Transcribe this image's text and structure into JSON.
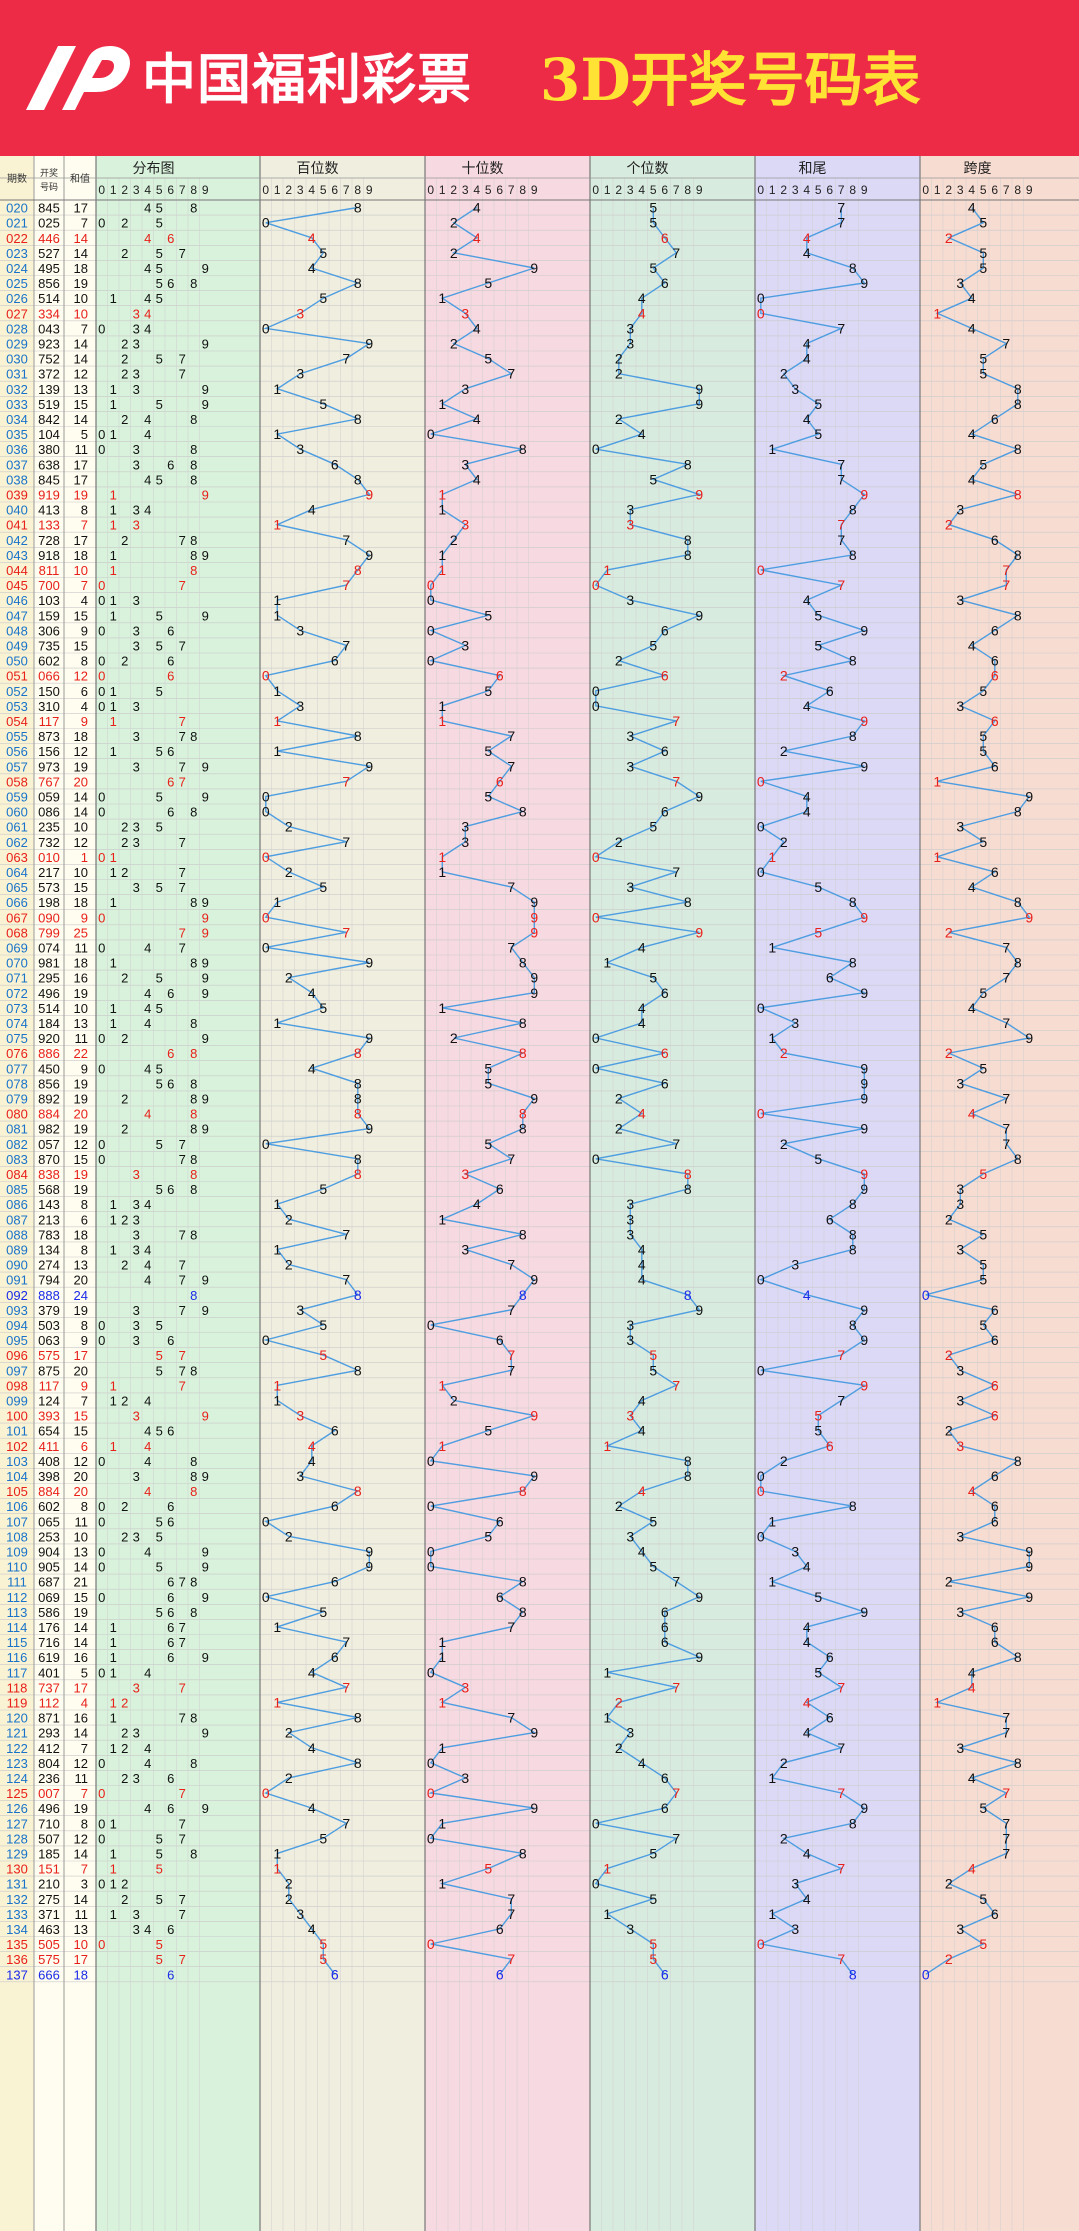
{
  "header": {
    "brand": "中国福利彩票",
    "title": "3D开奖号码表"
  },
  "colors": {
    "banner": "#ee2b47",
    "title_text": "#ffe234",
    "fenbu_bg": "#d9f2dc",
    "bai_bg": "#f0eedf",
    "shi_bg": "#f7d9e1",
    "ge_bg": "#d8ebdf",
    "hewei_bg": "#dcd9f7",
    "kuadu_bg": "#f7dcd2",
    "line": "#4d9de0",
    "pair": "#e8201a",
    "triple": "#1a2ae8"
  },
  "table": {
    "col_headers": [
      "期数",
      "开奖号码",
      "和值"
    ],
    "section_headers": [
      "分布图",
      "百位数",
      "十位数",
      "个位数",
      "和尾",
      "跨度"
    ],
    "digit_headers": [
      "0",
      "1",
      "2",
      "3",
      "4",
      "5",
      "6",
      "7",
      "8",
      "9"
    ]
  },
  "chart_data": {
    "type": "table",
    "columns": [
      "period",
      "number",
      "sum"
    ],
    "rows": [
      [
        "020",
        "845",
        "17"
      ],
      [
        "021",
        "025",
        "7"
      ],
      [
        "022",
        "446",
        "14"
      ],
      [
        "023",
        "527",
        "14"
      ],
      [
        "024",
        "495",
        "18"
      ],
      [
        "025",
        "856",
        "19"
      ],
      [
        "026",
        "514",
        "10"
      ],
      [
        "027",
        "334",
        "10"
      ],
      [
        "028",
        "043",
        "7"
      ],
      [
        "029",
        "923",
        "14"
      ],
      [
        "030",
        "752",
        "14"
      ],
      [
        "031",
        "372",
        "12"
      ],
      [
        "032",
        "139",
        "13"
      ],
      [
        "033",
        "519",
        "15"
      ],
      [
        "034",
        "842",
        "14"
      ],
      [
        "035",
        "104",
        "5"
      ],
      [
        "036",
        "380",
        "11"
      ],
      [
        "037",
        "638",
        "17"
      ],
      [
        "038",
        "845",
        "17"
      ],
      [
        "039",
        "919",
        "19"
      ],
      [
        "040",
        "413",
        "8"
      ],
      [
        "041",
        "133",
        "7"
      ],
      [
        "042",
        "728",
        "17"
      ],
      [
        "043",
        "918",
        "18"
      ],
      [
        "044",
        "811",
        "10"
      ],
      [
        "045",
        "700",
        "7"
      ],
      [
        "046",
        "103",
        "4"
      ],
      [
        "047",
        "159",
        "15"
      ],
      [
        "048",
        "306",
        "9"
      ],
      [
        "049",
        "735",
        "15"
      ],
      [
        "050",
        "602",
        "8"
      ],
      [
        "051",
        "066",
        "12"
      ],
      [
        "052",
        "150",
        "6"
      ],
      [
        "053",
        "310",
        "4"
      ],
      [
        "054",
        "117",
        "9"
      ],
      [
        "055",
        "873",
        "18"
      ],
      [
        "056",
        "156",
        "12"
      ],
      [
        "057",
        "973",
        "19"
      ],
      [
        "058",
        "767",
        "20"
      ],
      [
        "059",
        "059",
        "14"
      ],
      [
        "060",
        "086",
        "14"
      ],
      [
        "061",
        "235",
        "10"
      ],
      [
        "062",
        "732",
        "12"
      ],
      [
        "063",
        "010",
        "1"
      ],
      [
        "064",
        "217",
        "10"
      ],
      [
        "065",
        "573",
        "15"
      ],
      [
        "066",
        "198",
        "18"
      ],
      [
        "067",
        "090",
        "9"
      ],
      [
        "068",
        "799",
        "25"
      ],
      [
        "069",
        "074",
        "11"
      ],
      [
        "070",
        "981",
        "18"
      ],
      [
        "071",
        "295",
        "16"
      ],
      [
        "072",
        "496",
        "19"
      ],
      [
        "073",
        "514",
        "10"
      ],
      [
        "074",
        "184",
        "13"
      ],
      [
        "075",
        "920",
        "11"
      ],
      [
        "076",
        "886",
        "22"
      ],
      [
        "077",
        "450",
        "9"
      ],
      [
        "078",
        "856",
        "19"
      ],
      [
        "079",
        "892",
        "19"
      ],
      [
        "080",
        "884",
        "20"
      ],
      [
        "081",
        "982",
        "19"
      ],
      [
        "082",
        "057",
        "12"
      ],
      [
        "083",
        "870",
        "15"
      ],
      [
        "084",
        "838",
        "19"
      ],
      [
        "085",
        "568",
        "19"
      ],
      [
        "086",
        "143",
        "8"
      ],
      [
        "087",
        "213",
        "6"
      ],
      [
        "088",
        "783",
        "18"
      ],
      [
        "089",
        "134",
        "8"
      ],
      [
        "090",
        "274",
        "13"
      ],
      [
        "091",
        "794",
        "20"
      ],
      [
        "092",
        "888",
        "24"
      ],
      [
        "093",
        "379",
        "19"
      ],
      [
        "094",
        "503",
        "8"
      ],
      [
        "095",
        "063",
        "9"
      ],
      [
        "096",
        "575",
        "17"
      ],
      [
        "097",
        "875",
        "20"
      ],
      [
        "098",
        "117",
        "9"
      ],
      [
        "099",
        "124",
        "7"
      ],
      [
        "100",
        "393",
        "15"
      ],
      [
        "101",
        "654",
        "15"
      ],
      [
        "102",
        "411",
        "6"
      ],
      [
        "103",
        "408",
        "12"
      ],
      [
        "104",
        "398",
        "20"
      ],
      [
        "105",
        "884",
        "20"
      ],
      [
        "106",
        "602",
        "8"
      ],
      [
        "107",
        "065",
        "11"
      ],
      [
        "108",
        "253",
        "10"
      ],
      [
        "109",
        "904",
        "13"
      ],
      [
        "110",
        "905",
        "14"
      ],
      [
        "111",
        "687",
        "21"
      ],
      [
        "112",
        "069",
        "15"
      ],
      [
        "113",
        "586",
        "19"
      ],
      [
        "114",
        "176",
        "14"
      ],
      [
        "115",
        "716",
        "14"
      ],
      [
        "116",
        "619",
        "16"
      ],
      [
        "117",
        "401",
        "5"
      ],
      [
        "118",
        "737",
        "17"
      ],
      [
        "119",
        "112",
        "4"
      ],
      [
        "120",
        "871",
        "16"
      ],
      [
        "121",
        "293",
        "14"
      ],
      [
        "122",
        "412",
        "7"
      ],
      [
        "123",
        "804",
        "12"
      ],
      [
        "124",
        "236",
        "11"
      ],
      [
        "125",
        "007",
        "7"
      ],
      [
        "126",
        "496",
        "19"
      ],
      [
        "127",
        "710",
        "8"
      ],
      [
        "128",
        "507",
        "12"
      ],
      [
        "129",
        "185",
        "14"
      ],
      [
        "130",
        "151",
        "7"
      ],
      [
        "131",
        "210",
        "3"
      ],
      [
        "132",
        "275",
        "14"
      ],
      [
        "133",
        "371",
        "11"
      ],
      [
        "134",
        "463",
        "13"
      ],
      [
        "135",
        "505",
        "10"
      ],
      [
        "136",
        "575",
        "17"
      ],
      [
        "137",
        "666",
        "18"
      ]
    ]
  }
}
